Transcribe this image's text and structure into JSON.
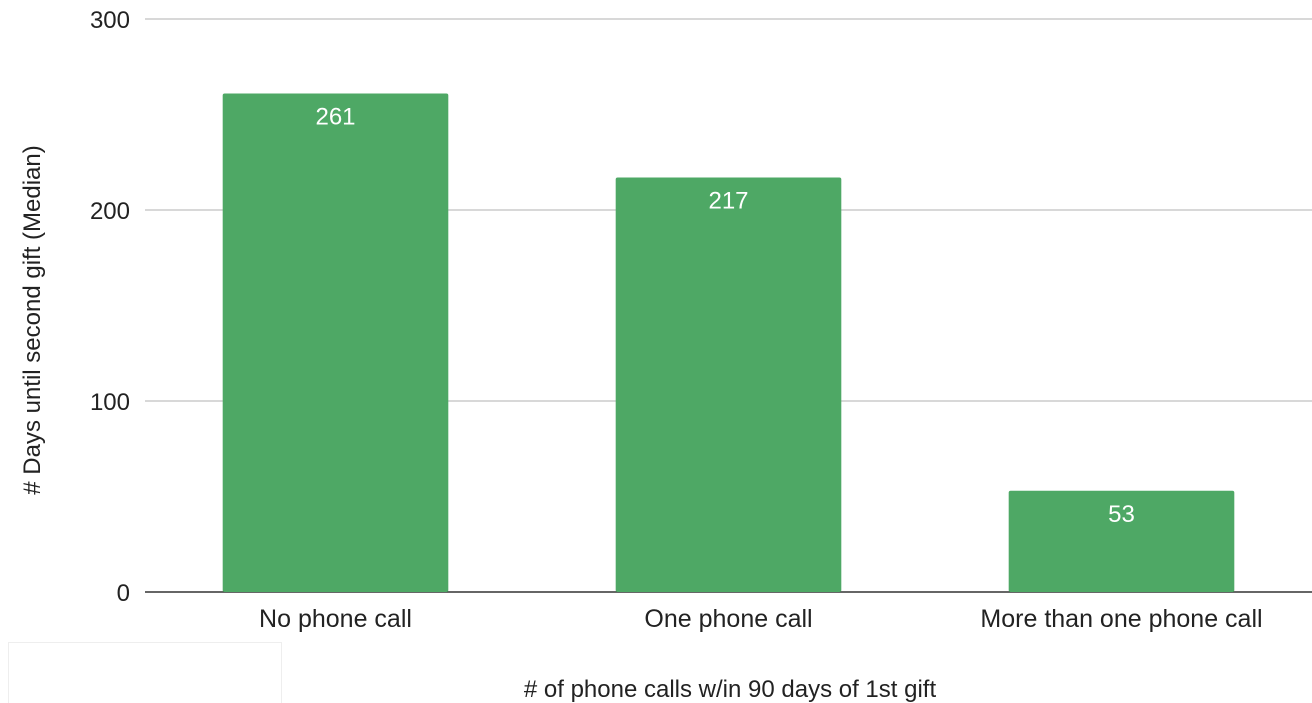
{
  "chart_data": {
    "type": "bar",
    "title": "",
    "xlabel": "# of phone calls w/in 90 days of 1st gift",
    "ylabel": "# Days until second gift (Median)",
    "categories": [
      "No phone call",
      "One phone call",
      "More than one phone call"
    ],
    "values": [
      261,
      217,
      53
    ],
    "data_labels": [
      "261",
      "217",
      "53"
    ],
    "ylim": [
      0,
      300
    ],
    "yticks": [
      0,
      100,
      200,
      300
    ],
    "ytick_labels": [
      "0",
      "100",
      "200",
      "300"
    ],
    "grid": true,
    "legend": "none",
    "bar_color": "#4ea865"
  }
}
